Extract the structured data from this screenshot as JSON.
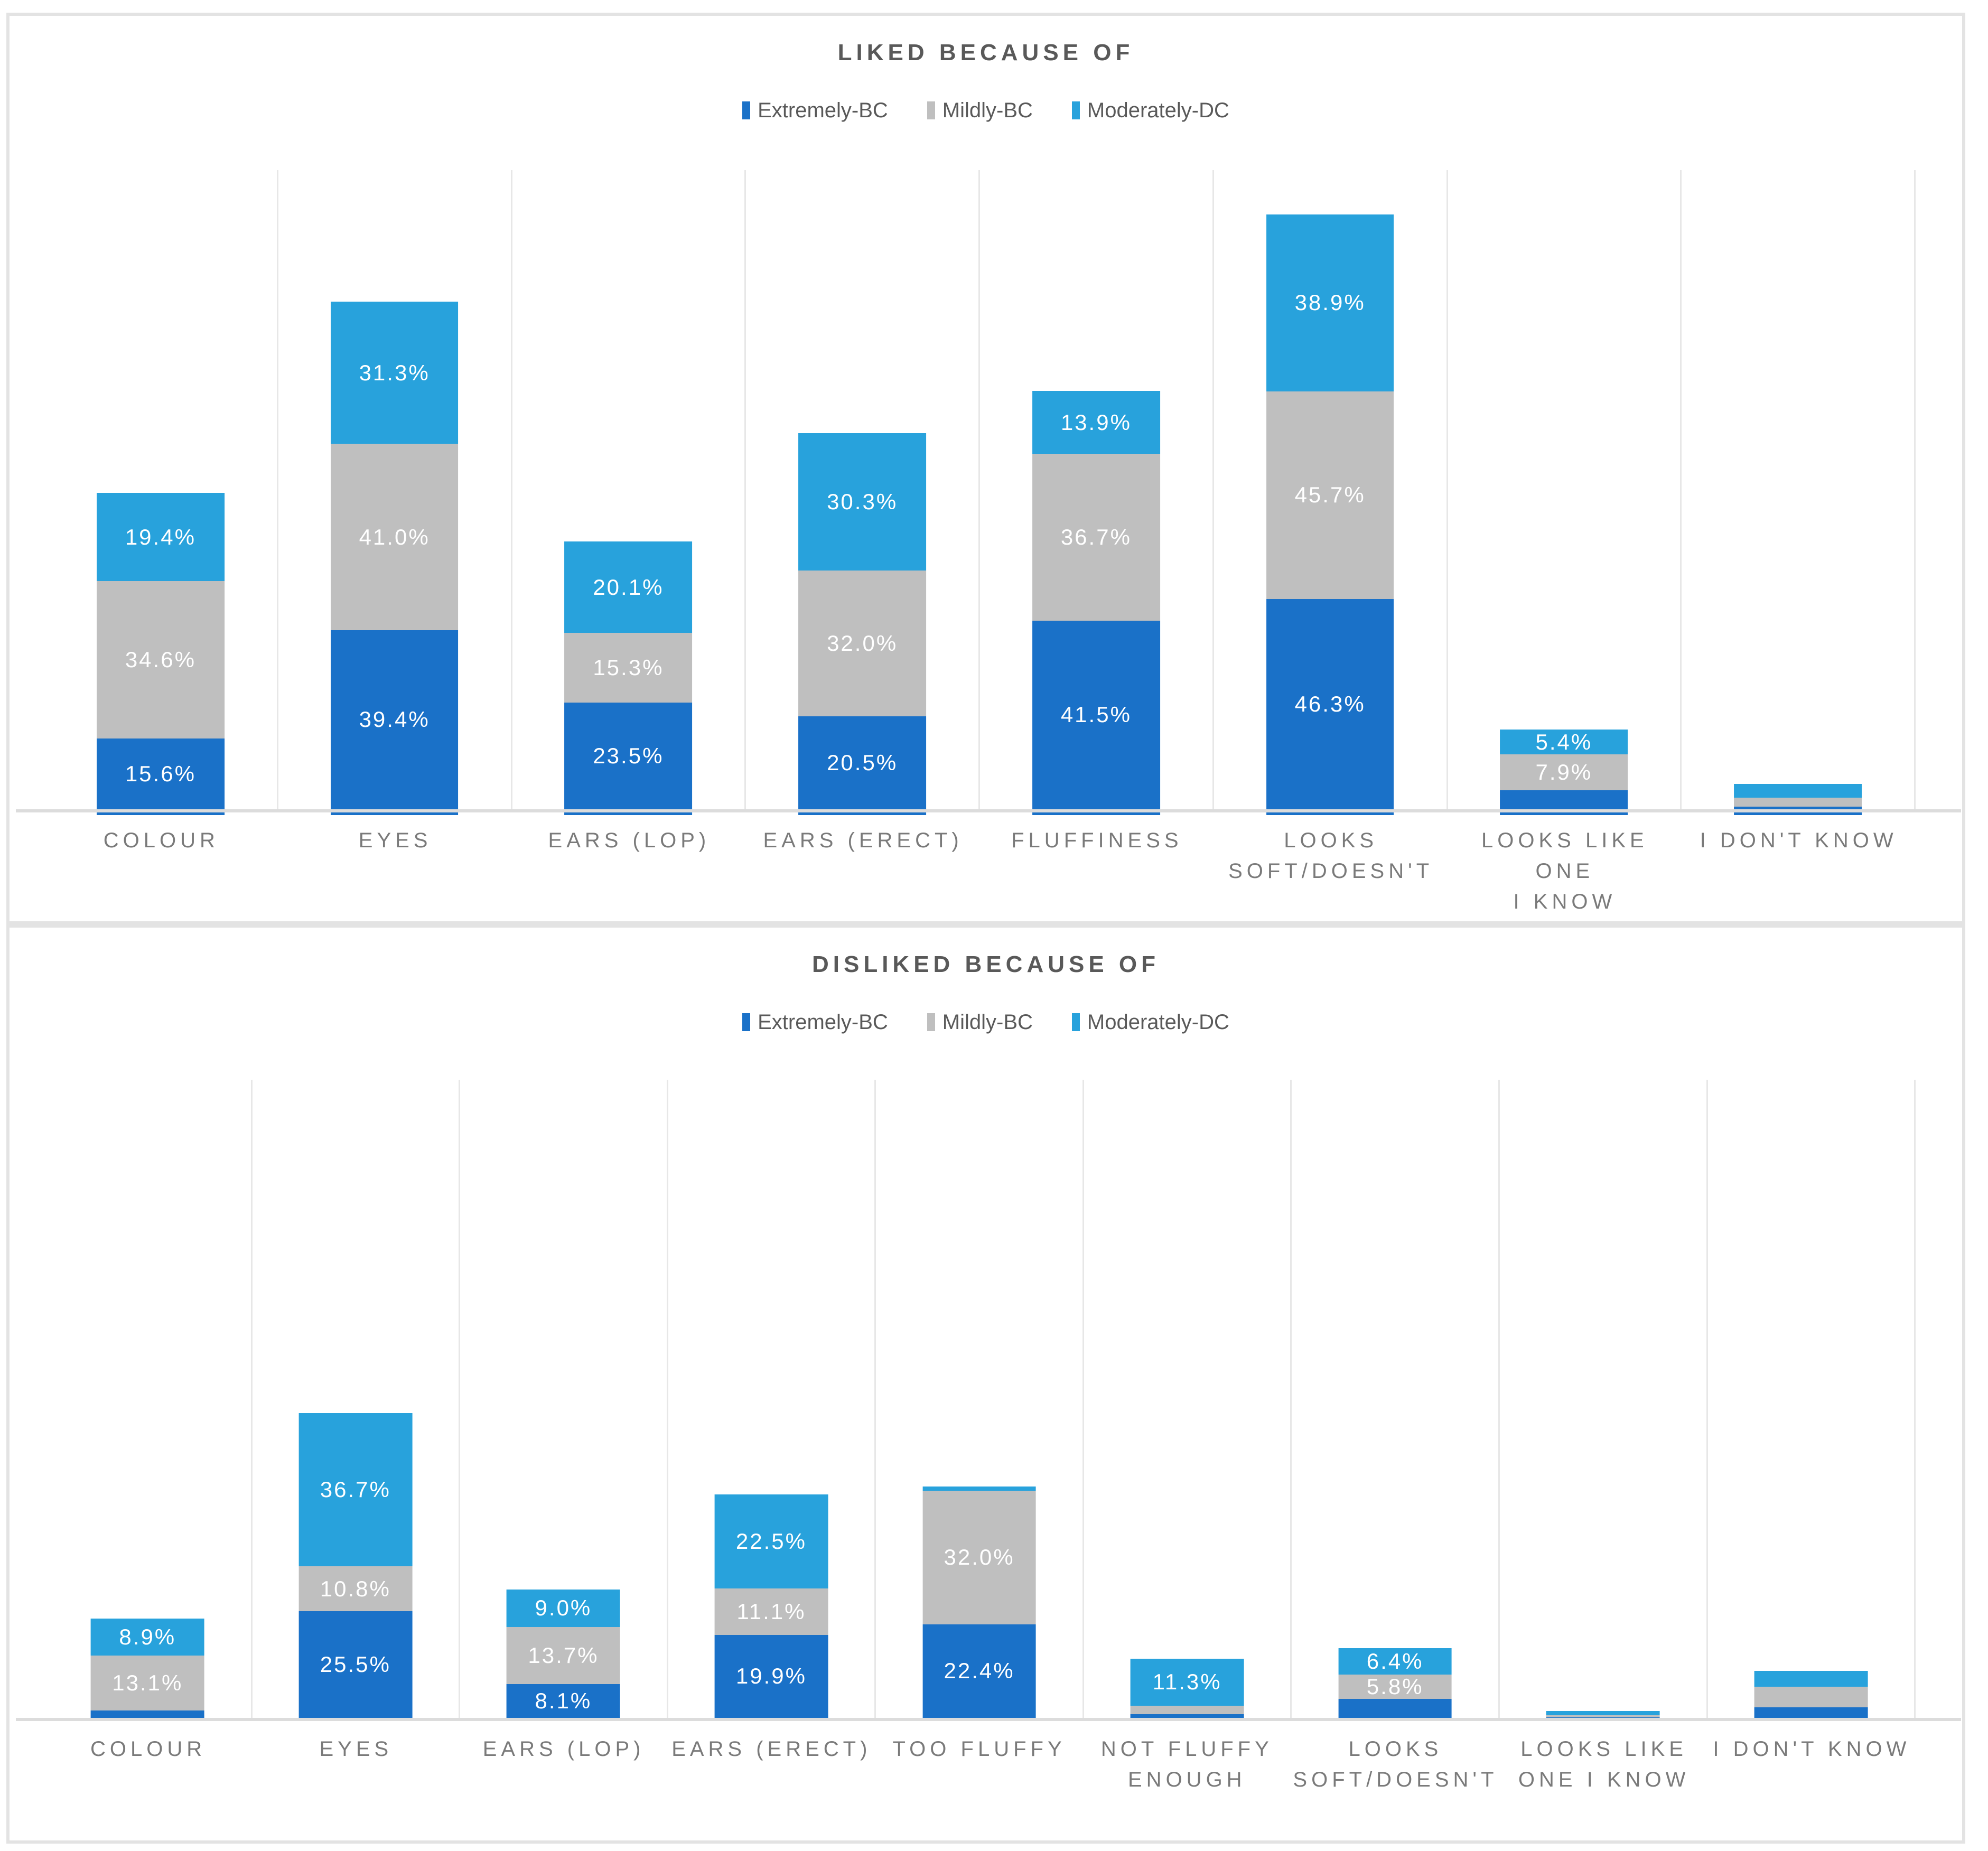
{
  "page": {
    "background": "#FFFFFF"
  },
  "colors": {
    "extremely_bc": "#1A71C8",
    "mildly_bc": "#BFBFBF",
    "moderately_dc": "#28A2DC",
    "title_text": "#595959",
    "axis_label_text": "#7A7A7A",
    "data_label_text": "#FFFFFF",
    "gridline": "#E7E7E7",
    "axis_line": "#DCDCDC",
    "panel_border": "#E3E3E3"
  },
  "chart_data": [
    {
      "type": "bar",
      "stacked": true,
      "title": "LIKED BECAUSE OF",
      "value_unit": "percent",
      "legend_position": "top",
      "gridlines": "vertical-between-categories",
      "y_axis_visible": false,
      "bar_base_strip": true,
      "categories": [
        "COLOUR",
        "EYES",
        "EARS (LOP)",
        "EARS (ERECT)",
        "FLUFFINESS",
        "LOOKS\nSOFT/DOESN'T",
        "LOOKS LIKE ONE\nI KNOW",
        "I DON'T KNOW"
      ],
      "series": [
        {
          "name": "Extremely-BC",
          "color_key": "extremely_bc",
          "values": [
            15.6,
            39.4,
            23.5,
            20.5,
            41.5,
            46.3,
            4.2,
            0.6
          ],
          "labels": [
            "15.6%",
            "39.4%",
            "23.5%",
            "20.5%",
            "41.5%",
            "46.3%",
            null,
            null
          ]
        },
        {
          "name": "Mildly-BC",
          "color_key": "mildly_bc",
          "values": [
            34.6,
            41.0,
            15.3,
            32.0,
            36.7,
            45.7,
            7.9,
            1.9
          ],
          "labels": [
            "34.6%",
            "41.0%",
            "15.3%",
            "32.0%",
            "36.7%",
            "45.7%",
            "7.9%",
            null
          ]
        },
        {
          "name": "Moderately-DC",
          "color_key": "moderately_dc",
          "values": [
            19.4,
            31.3,
            20.1,
            30.3,
            13.9,
            38.9,
            5.4,
            3.1
          ],
          "labels": [
            "19.4%",
            "31.3%",
            "20.1%",
            "30.3%",
            "13.9%",
            "38.9%",
            "5.4%",
            null
          ]
        }
      ]
    },
    {
      "type": "bar",
      "stacked": true,
      "title": "DISLIKED BECAUSE OF",
      "value_unit": "percent",
      "legend_position": "top",
      "gridlines": "vertical-between-categories",
      "y_axis_visible": false,
      "bar_base_strip": false,
      "categories": [
        "COLOUR",
        "EYES",
        "EARS (LOP)",
        "EARS (ERECT)",
        "TOO FLUFFY",
        "NOT FLUFFY\nENOUGH",
        "LOOKS\nSOFT/DOESN'T",
        "LOOKS LIKE\nONE I KNOW",
        "I DON'T KNOW"
      ],
      "series": [
        {
          "name": "Extremely-BC",
          "color_key": "extremely_bc",
          "values": [
            1.8,
            25.5,
            8.1,
            19.9,
            22.4,
            0.9,
            4.5,
            0.1,
            2.5
          ],
          "labels": [
            null,
            "25.5%",
            "8.1%",
            "19.9%",
            "22.4%",
            null,
            null,
            null,
            null
          ]
        },
        {
          "name": "Mildly-BC",
          "color_key": "mildly_bc",
          "values": [
            13.1,
            10.8,
            13.7,
            11.1,
            32.0,
            2.0,
            5.8,
            0.5,
            5.0
          ],
          "labels": [
            "13.1%",
            "10.8%",
            "13.7%",
            "11.1%",
            "32.0%",
            null,
            "5.8%",
            null,
            null
          ]
        },
        {
          "name": "Moderately-DC",
          "color_key": "moderately_dc",
          "values": [
            8.9,
            36.7,
            9.0,
            22.5,
            1.0,
            11.3,
            6.4,
            1.0,
            3.8
          ],
          "labels": [
            "8.9%",
            "36.7%",
            "9.0%",
            "22.5%",
            null,
            "11.3%",
            "6.4%",
            null,
            null
          ]
        }
      ]
    }
  ]
}
